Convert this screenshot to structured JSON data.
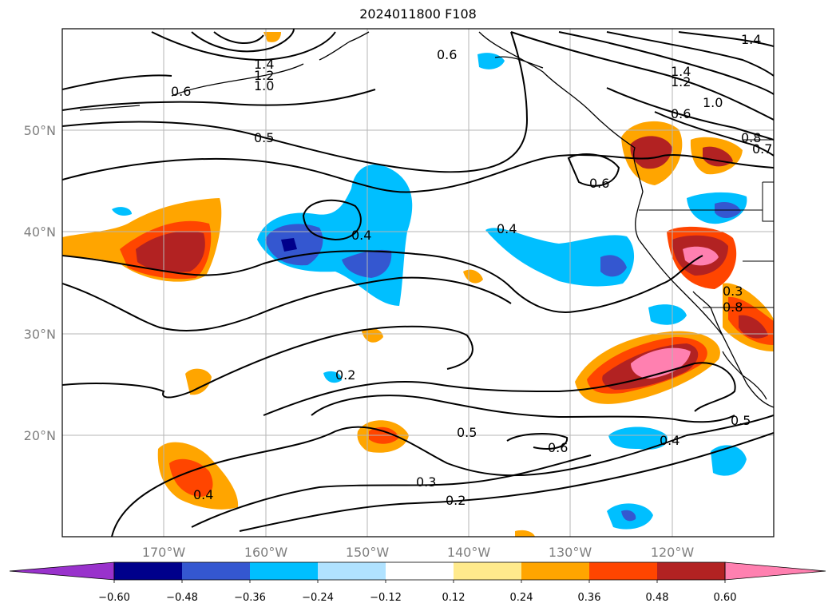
{
  "title": "2024011800 F108",
  "map": {
    "projection": "lat-lon",
    "lon_range": [
      -180,
      -110
    ],
    "lat_range": [
      10,
      60
    ],
    "lon_ticks": [
      "170°W",
      "160°W",
      "150°W",
      "140°W",
      "130°W",
      "120°W"
    ],
    "lat_ticks": [
      "50°N",
      "40°N",
      "30°N",
      "20°N"
    ],
    "grid": true,
    "gridline_color": "#b5b5b5",
    "coastline_color": "#000000"
  },
  "colorbar": {
    "orientation": "horizontal",
    "extend": "both",
    "colors": [
      "#9932cc",
      "#00008b",
      "#3457d0",
      "#00bfff",
      "#b0e2ff",
      "#ffffff",
      "#ffea8c",
      "#ffa500",
      "#ff4500",
      "#b22222",
      "#ff80b0"
    ],
    "tick_labels": [
      "−0.60",
      "−0.48",
      "−0.36",
      "−0.24",
      "−0.12",
      "0.12",
      "0.24",
      "0.36",
      "0.48",
      "0.60"
    ]
  },
  "contour_labels": [
    "1.4",
    "1.2",
    "1.0",
    "0.6",
    "0.5",
    "0.6",
    "1.4",
    "1.2",
    "1.0",
    "0.6",
    "0.8",
    "0.7",
    "1.4",
    "0.4",
    "0.4",
    "0.6",
    "0.3",
    "0.2",
    "0.5",
    "0.6",
    "0.4",
    "0.3",
    "0.2",
    "0.4",
    "0.5",
    "0.8"
  ]
}
